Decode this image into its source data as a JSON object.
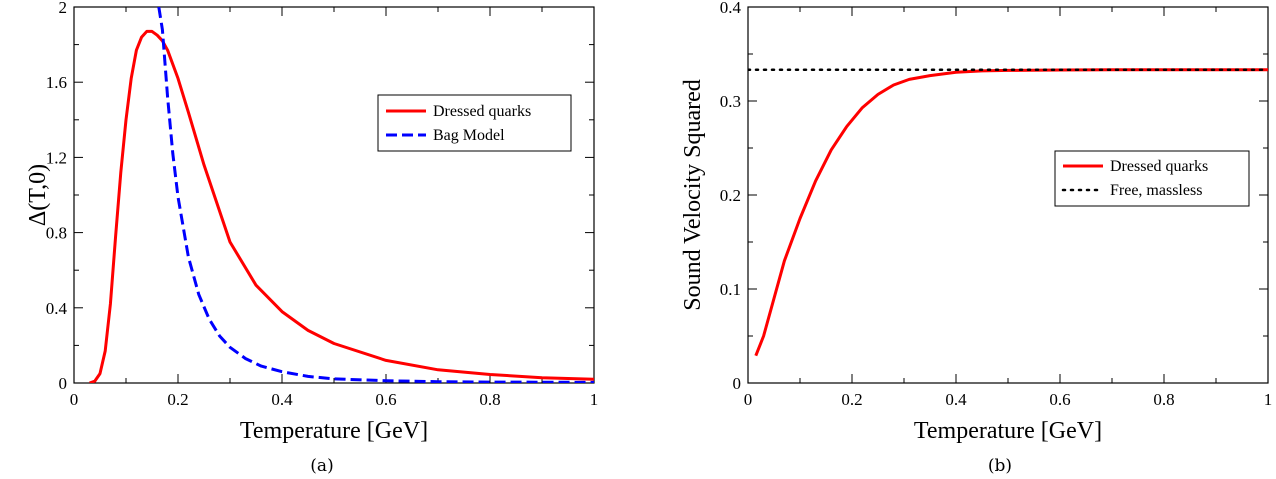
{
  "chart_data": [
    {
      "type": "line",
      "caption": "(a)",
      "xlabel": "Temperature [GeV]",
      "ylabel": "Δ(T,0)",
      "xlim": [
        0,
        1
      ],
      "ylim": [
        0,
        2
      ],
      "x_ticks": [
        "0",
        "0.2",
        "0.4",
        "0.6",
        "0.8",
        "1"
      ],
      "y_ticks": [
        "0",
        "0.4",
        "0.8",
        "1.2",
        "1.6",
        "2"
      ],
      "grid": false,
      "legend_position": "top-right",
      "series": [
        {
          "name": "Dressed quarks",
          "color": "#ff0000",
          "style": "solid",
          "x": [
            0.03,
            0.04,
            0.05,
            0.06,
            0.07,
            0.08,
            0.09,
            0.1,
            0.11,
            0.12,
            0.13,
            0.14,
            0.15,
            0.16,
            0.17,
            0.18,
            0.2,
            0.22,
            0.25,
            0.3,
            0.35,
            0.4,
            0.45,
            0.5,
            0.6,
            0.7,
            0.8,
            0.9,
            1.0
          ],
          "y": [
            0.0,
            0.01,
            0.05,
            0.17,
            0.42,
            0.78,
            1.12,
            1.4,
            1.62,
            1.77,
            1.84,
            1.87,
            1.87,
            1.85,
            1.82,
            1.77,
            1.62,
            1.44,
            1.16,
            0.75,
            0.52,
            0.38,
            0.28,
            0.21,
            0.12,
            0.07,
            0.045,
            0.028,
            0.02
          ]
        },
        {
          "name": "Bag Model",
          "color": "#0000ff",
          "style": "dashed",
          "x": [
            0.163,
            0.17,
            0.18,
            0.19,
            0.2,
            0.22,
            0.24,
            0.26,
            0.28,
            0.3,
            0.33,
            0.36,
            0.4,
            0.45,
            0.5,
            0.6,
            0.7,
            0.8,
            0.9,
            1.0
          ],
          "y": [
            2.0,
            1.88,
            1.52,
            1.22,
            0.99,
            0.67,
            0.47,
            0.34,
            0.25,
            0.19,
            0.13,
            0.09,
            0.06,
            0.035,
            0.022,
            0.012,
            0.007,
            0.005,
            0.004,
            0.003
          ]
        }
      ]
    },
    {
      "type": "line",
      "caption": "(b)",
      "xlabel": "Temperature [GeV]",
      "ylabel": "Sound Velocity Squared",
      "xlim": [
        0,
        1
      ],
      "ylim": [
        0,
        0.4
      ],
      "x_ticks": [
        "0",
        "0.2",
        "0.4",
        "0.6",
        "0.8",
        "1"
      ],
      "y_ticks": [
        "0",
        "0.1",
        "0.2",
        "0.3",
        "0.4"
      ],
      "grid": false,
      "legend_position": "right",
      "series": [
        {
          "name": "Dressed quarks",
          "color": "#ff0000",
          "style": "solid",
          "x": [
            0.015,
            0.03,
            0.05,
            0.07,
            0.1,
            0.13,
            0.16,
            0.19,
            0.22,
            0.25,
            0.28,
            0.31,
            0.35,
            0.4,
            0.45,
            0.5,
            0.6,
            0.7,
            0.8,
            0.9,
            1.0
          ],
          "y": [
            0.029,
            0.05,
            0.09,
            0.13,
            0.175,
            0.215,
            0.248,
            0.273,
            0.293,
            0.307,
            0.317,
            0.323,
            0.327,
            0.3305,
            0.332,
            0.3325,
            0.333,
            0.3333,
            0.3333,
            0.3333,
            0.3333
          ]
        },
        {
          "name": "Free, massless",
          "color": "#000000",
          "style": "dotted",
          "x": [
            0.0,
            1.0
          ],
          "y": [
            0.3333,
            0.3333
          ]
        }
      ]
    }
  ]
}
